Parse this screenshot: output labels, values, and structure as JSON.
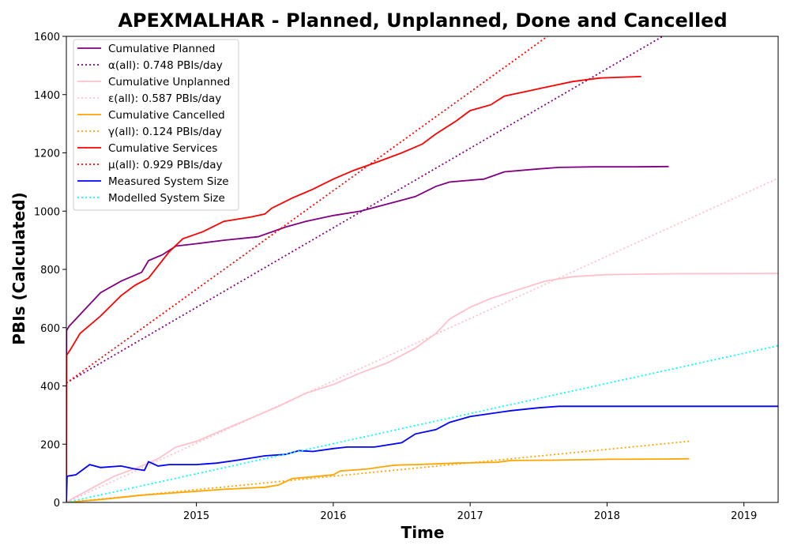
{
  "chart_data": {
    "type": "line",
    "title": "APEXMALHAR - Planned, Unplanned, Done  and Cancelled",
    "xlabel": "Time",
    "ylabel": "PBIs (Calculated)",
    "xlim": [
      2014.05,
      2019.25
    ],
    "ylim": [
      0,
      1600
    ],
    "x_ticks": [
      2015,
      2016,
      2017,
      2018,
      2019
    ],
    "x_tick_labels": [
      "2015",
      "2016",
      "2017",
      "2018",
      "2019"
    ],
    "y_ticks": [
      0,
      200,
      400,
      600,
      800,
      1000,
      1200,
      1400,
      1600
    ],
    "y_tick_labels": [
      "0",
      "200",
      "400",
      "600",
      "800",
      "1000",
      "1200",
      "1400",
      "1600"
    ],
    "grid": false,
    "legend_position": "top-left",
    "series": [
      {
        "name": "Cumulative Planned",
        "color": "#800080",
        "style": "solid",
        "points": [
          [
            2014.05,
            0
          ],
          [
            2014.052,
            590
          ],
          [
            2014.07,
            605
          ],
          [
            2014.12,
            630
          ],
          [
            2014.2,
            670
          ],
          [
            2014.3,
            720
          ],
          [
            2014.45,
            760
          ],
          [
            2014.6,
            790
          ],
          [
            2014.65,
            830
          ],
          [
            2014.75,
            850
          ],
          [
            2014.85,
            880
          ],
          [
            2015.0,
            888
          ],
          [
            2015.2,
            900
          ],
          [
            2015.45,
            912
          ],
          [
            2015.65,
            945
          ],
          [
            2015.8,
            965
          ],
          [
            2016.0,
            985
          ],
          [
            2016.2,
            1000
          ],
          [
            2016.4,
            1025
          ],
          [
            2016.6,
            1050
          ],
          [
            2016.75,
            1085
          ],
          [
            2016.85,
            1100
          ],
          [
            2017.1,
            1110
          ],
          [
            2017.25,
            1135
          ],
          [
            2017.5,
            1145
          ],
          [
            2017.65,
            1150
          ],
          [
            2017.9,
            1152
          ],
          [
            2018.2,
            1152
          ],
          [
            2018.45,
            1153
          ]
        ]
      },
      {
        "name": "α(all): 0.748 PBIs/day",
        "color": "#800080",
        "style": "dotted",
        "points": [
          [
            2014.05,
            410
          ],
          [
            2018.45,
            1612
          ]
        ]
      },
      {
        "name": "Cumulative Unplanned",
        "color": "#ffc0cb",
        "style": "solid",
        "points": [
          [
            2014.05,
            0
          ],
          [
            2014.1,
            15
          ],
          [
            2014.2,
            40
          ],
          [
            2014.4,
            90
          ],
          [
            2014.6,
            125
          ],
          [
            2014.72,
            150
          ],
          [
            2014.85,
            190
          ],
          [
            2015.0,
            210
          ],
          [
            2015.2,
            250
          ],
          [
            2015.4,
            290
          ],
          [
            2015.6,
            330
          ],
          [
            2015.8,
            375
          ],
          [
            2016.0,
            405
          ],
          [
            2016.2,
            445
          ],
          [
            2016.4,
            480
          ],
          [
            2016.6,
            530
          ],
          [
            2016.75,
            580
          ],
          [
            2016.85,
            630
          ],
          [
            2017.0,
            670
          ],
          [
            2017.15,
            700
          ],
          [
            2017.35,
            730
          ],
          [
            2017.55,
            760
          ],
          [
            2017.75,
            775
          ],
          [
            2018.0,
            782
          ],
          [
            2018.5,
            785
          ],
          [
            2019.25,
            786
          ]
        ]
      },
      {
        "name": "ε(all): 0.587 PBIs/day",
        "color": "#ffc0cb",
        "style": "dotted",
        "points": [
          [
            2014.05,
            0
          ],
          [
            2019.25,
            1113
          ]
        ]
      },
      {
        "name": "Cumulative Cancelled",
        "color": "#ffa500",
        "style": "solid",
        "points": [
          [
            2014.05,
            0
          ],
          [
            2014.3,
            10
          ],
          [
            2014.6,
            25
          ],
          [
            2014.9,
            35
          ],
          [
            2015.2,
            45
          ],
          [
            2015.5,
            52
          ],
          [
            2015.6,
            60
          ],
          [
            2015.7,
            82
          ],
          [
            2015.85,
            88
          ],
          [
            2016.0,
            95
          ],
          [
            2016.05,
            108
          ],
          [
            2016.25,
            115
          ],
          [
            2016.4,
            125
          ],
          [
            2016.45,
            128
          ],
          [
            2016.6,
            130
          ],
          [
            2016.9,
            135
          ],
          [
            2017.2,
            138
          ],
          [
            2017.3,
            144
          ],
          [
            2017.6,
            145
          ],
          [
            2018.0,
            148
          ],
          [
            2018.4,
            149
          ],
          [
            2018.6,
            150
          ]
        ]
      },
      {
        "name": "γ(all): 0.124 PBIs/day",
        "color": "#ffa500",
        "style": "dotted",
        "points": [
          [
            2014.05,
            0
          ],
          [
            2018.6,
            210
          ]
        ]
      },
      {
        "name": "Cumulative Services",
        "color": "#ff0000",
        "style": "solid",
        "points": [
          [
            2014.05,
            0
          ],
          [
            2014.052,
            505
          ],
          [
            2014.08,
            525
          ],
          [
            2014.15,
            580
          ],
          [
            2014.3,
            640
          ],
          [
            2014.45,
            710
          ],
          [
            2014.55,
            745
          ],
          [
            2014.65,
            770
          ],
          [
            2014.75,
            830
          ],
          [
            2014.8,
            860
          ],
          [
            2014.9,
            905
          ],
          [
            2015.05,
            930
          ],
          [
            2015.2,
            965
          ],
          [
            2015.4,
            980
          ],
          [
            2015.5,
            990
          ],
          [
            2015.55,
            1010
          ],
          [
            2015.7,
            1045
          ],
          [
            2015.85,
            1075
          ],
          [
            2016.0,
            1110
          ],
          [
            2016.15,
            1140
          ],
          [
            2016.3,
            1165
          ],
          [
            2016.5,
            1200
          ],
          [
            2016.65,
            1230
          ],
          [
            2016.75,
            1265
          ],
          [
            2016.9,
            1310
          ],
          [
            2017.0,
            1345
          ],
          [
            2017.15,
            1365
          ],
          [
            2017.25,
            1395
          ],
          [
            2017.4,
            1410
          ],
          [
            2017.55,
            1425
          ],
          [
            2017.75,
            1445
          ],
          [
            2017.95,
            1457
          ],
          [
            2018.25,
            1462
          ]
        ]
      },
      {
        "name": "μ(all): 0.929 PBIs/day",
        "color": "#ff0000",
        "style": "dotted",
        "points": [
          [
            2014.05,
            410
          ],
          [
            2017.6,
            1612
          ]
        ]
      },
      {
        "name": "Measured System Size",
        "color": "#0000ff",
        "style": "solid",
        "points": [
          [
            2014.05,
            0
          ],
          [
            2014.055,
            90
          ],
          [
            2014.12,
            95
          ],
          [
            2014.22,
            130
          ],
          [
            2014.3,
            120
          ],
          [
            2014.45,
            125
          ],
          [
            2014.55,
            115
          ],
          [
            2014.62,
            110
          ],
          [
            2014.65,
            140
          ],
          [
            2014.72,
            125
          ],
          [
            2014.8,
            130
          ],
          [
            2015.0,
            130
          ],
          [
            2015.15,
            135
          ],
          [
            2015.3,
            145
          ],
          [
            2015.5,
            160
          ],
          [
            2015.65,
            165
          ],
          [
            2015.75,
            178
          ],
          [
            2015.85,
            175
          ],
          [
            2016.0,
            185
          ],
          [
            2016.1,
            190
          ],
          [
            2016.3,
            190
          ],
          [
            2016.5,
            205
          ],
          [
            2016.6,
            235
          ],
          [
            2016.75,
            250
          ],
          [
            2016.85,
            275
          ],
          [
            2017.0,
            295
          ],
          [
            2017.15,
            305
          ],
          [
            2017.3,
            315
          ],
          [
            2017.5,
            325
          ],
          [
            2017.65,
            330
          ],
          [
            2017.9,
            330
          ],
          [
            2018.2,
            330
          ],
          [
            2018.6,
            330
          ],
          [
            2019.25,
            330
          ]
        ]
      },
      {
        "name": "Modelled System Size",
        "color": "#00ffff",
        "style": "dotted",
        "points": [
          [
            2014.05,
            0
          ],
          [
            2019.25,
            538
          ]
        ]
      }
    ]
  }
}
